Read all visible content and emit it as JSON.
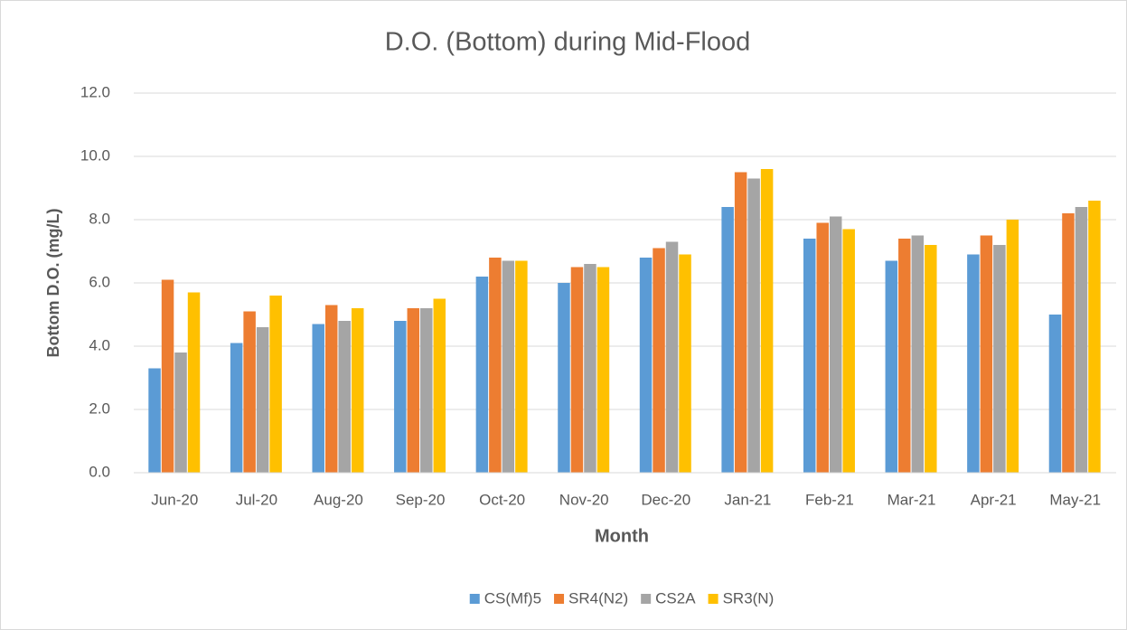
{
  "chart_data": {
    "type": "bar",
    "title": "D.O. (Bottom) during Mid-Flood",
    "xlabel": "Month",
    "ylabel": "Bottom D.O. (mg/L)",
    "categories": [
      "Jun-20",
      "Jul-20",
      "Aug-20",
      "Sep-20",
      "Oct-20",
      "Nov-20",
      "Dec-20",
      "Jan-21",
      "Feb-21",
      "Mar-21",
      "Apr-21",
      "May-21"
    ],
    "series": [
      {
        "name": "CS(Mf)5",
        "color": "#5b9bd5",
        "values": [
          3.3,
          4.1,
          4.7,
          4.8,
          6.2,
          6.0,
          6.8,
          8.4,
          7.4,
          6.7,
          6.9,
          5.0
        ]
      },
      {
        "name": "SR4(N2)",
        "color": "#ed7d31",
        "values": [
          6.1,
          5.1,
          5.3,
          5.2,
          6.8,
          6.5,
          7.1,
          9.5,
          7.9,
          7.4,
          7.5,
          8.2
        ]
      },
      {
        "name": "CS2A",
        "color": "#a5a5a5",
        "values": [
          3.8,
          4.6,
          4.8,
          5.2,
          6.7,
          6.6,
          7.3,
          9.3,
          8.1,
          7.5,
          7.2,
          8.4
        ]
      },
      {
        "name": "SR3(N)",
        "color": "#ffc000",
        "values": [
          5.7,
          5.6,
          5.2,
          5.5,
          6.7,
          6.5,
          6.9,
          9.6,
          7.7,
          7.2,
          8.0,
          8.6
        ]
      }
    ],
    "ylim": [
      0,
      12
    ],
    "yticks": [
      {
        "value": 0,
        "label": "0.0"
      },
      {
        "value": 2,
        "label": "2.0"
      },
      {
        "value": 4,
        "label": "4.0"
      },
      {
        "value": 6,
        "label": "6.0"
      },
      {
        "value": 8,
        "label": "8.0"
      },
      {
        "value": 10,
        "label": "10.0"
      },
      {
        "value": 12,
        "label": "12.0"
      }
    ],
    "grid": true,
    "legend": "bottom"
  }
}
